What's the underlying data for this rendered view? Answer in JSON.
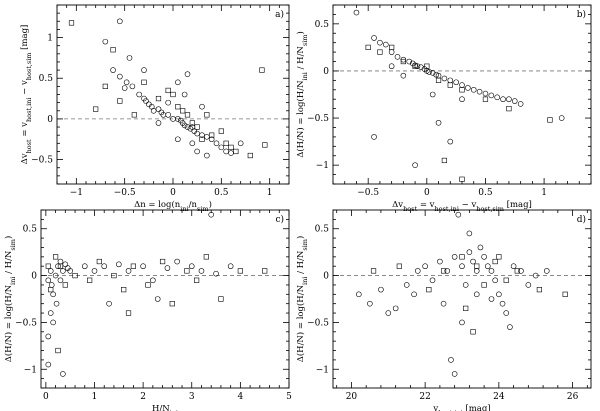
{
  "chart_data": [
    {
      "type": "scatter",
      "panel": "a)",
      "xlabel": "Δn = log(n_ini/n_sim)",
      "ylabel": "Δv_host = v_host,ini − v_host,sim [mag]",
      "xlim": [
        -1.2,
        1.2
      ],
      "ylim": [
        -0.8,
        1.4
      ],
      "xticks": [
        -1,
        -0.5,
        0,
        0.5,
        1
      ],
      "xtick_labels": [
        "−1",
        "−0.5",
        "0",
        "0.5",
        "1"
      ],
      "yticks": [
        -0.5,
        0,
        0.5,
        1
      ],
      "ytick_labels": [
        "−0.5",
        "0",
        "0.5",
        "1"
      ],
      "reference_line": 0,
      "series": [
        {
          "name": "circles",
          "marker": "circle",
          "points": [
            [
              -0.55,
              1.2
            ],
            [
              -0.7,
              0.95
            ],
            [
              -0.62,
              0.6
            ],
            [
              -0.55,
              0.52
            ],
            [
              -0.48,
              0.45
            ],
            [
              -0.42,
              0.4
            ],
            [
              -0.5,
              0.38
            ],
            [
              -0.35,
              0.3
            ],
            [
              -0.3,
              0.25
            ],
            [
              -0.28,
              0.22
            ],
            [
              -0.25,
              0.18
            ],
            [
              -0.22,
              0.15
            ],
            [
              -0.2,
              0.1
            ],
            [
              -0.15,
              0.12
            ],
            [
              -0.12,
              0.08
            ],
            [
              -0.1,
              0.05
            ],
            [
              -0.05,
              0.05
            ],
            [
              0.0,
              0.0
            ],
            [
              0.05,
              0.0
            ],
            [
              0.08,
              -0.02
            ],
            [
              0.1,
              -0.05
            ],
            [
              0.12,
              -0.08
            ],
            [
              0.15,
              -0.1
            ],
            [
              0.18,
              -0.12
            ],
            [
              0.2,
              -0.1
            ],
            [
              0.22,
              -0.15
            ],
            [
              0.25,
              -0.18
            ],
            [
              0.3,
              -0.2
            ],
            [
              0.35,
              -0.22
            ],
            [
              0.4,
              -0.25
            ],
            [
              0.45,
              -0.3
            ],
            [
              0.5,
              -0.35
            ],
            [
              0.55,
              -0.4
            ],
            [
              0.6,
              -0.42
            ],
            [
              0.7,
              -0.3
            ],
            [
              0.05,
              0.45
            ],
            [
              0.12,
              0.3
            ],
            [
              -0.15,
              -0.05
            ],
            [
              0.25,
              -0.4
            ],
            [
              0.35,
              -0.45
            ],
            [
              0.15,
              0.55
            ],
            [
              -0.3,
              0.6
            ],
            [
              -0.45,
              0.75
            ],
            [
              0.3,
              0.15
            ],
            [
              -0.05,
              0.2
            ],
            [
              0.05,
              -0.25
            ],
            [
              0.2,
              -0.3
            ]
          ]
        },
        {
          "name": "squares",
          "marker": "square",
          "points": [
            [
              -1.05,
              1.18
            ],
            [
              -0.62,
              0.85
            ],
            [
              -0.8,
              0.12
            ],
            [
              -0.55,
              0.22
            ],
            [
              -0.4,
              0.05
            ],
            [
              -0.15,
              0.25
            ],
            [
              -0.05,
              0.35
            ],
            [
              0.05,
              0.15
            ],
            [
              0.1,
              0.1
            ],
            [
              0.15,
              0.05
            ],
            [
              0.2,
              -0.05
            ],
            [
              0.25,
              -0.1
            ],
            [
              0.3,
              -0.25
            ],
            [
              0.4,
              -0.2
            ],
            [
              0.5,
              -0.15
            ],
            [
              0.55,
              -0.3
            ],
            [
              0.6,
              -0.35
            ],
            [
              0.65,
              -0.4
            ],
            [
              0.8,
              -0.45
            ],
            [
              0.95,
              -0.32
            ],
            [
              0.92,
              0.6
            ],
            [
              -0.7,
              0.4
            ],
            [
              -0.3,
              0.45
            ],
            [
              0.0,
              0.3
            ],
            [
              0.35,
              0.05
            ]
          ]
        }
      ]
    },
    {
      "type": "scatter",
      "panel": "b)",
      "xlabel": "Δv_host = v_host,ini − v_host,sim [mag]",
      "ylabel": "Δ(H/N) = log(H/N_ini / H/N_sim)",
      "xlim": [
        -0.8,
        1.4
      ],
      "ylim": [
        -1.2,
        0.7
      ],
      "xticks": [
        -0.5,
        0,
        0.5,
        1
      ],
      "xtick_labels": [
        "−0.5",
        "0",
        "0.5",
        "1"
      ],
      "yticks": [
        -1,
        -0.5,
        0,
        0.5
      ],
      "ytick_labels": [
        "−1",
        "−0.5",
        "0",
        "0.5"
      ],
      "reference_line": 0,
      "series": [
        {
          "name": "circles",
          "marker": "circle",
          "points": [
            [
              -0.6,
              0.62
            ],
            [
              -0.45,
              0.35
            ],
            [
              -0.4,
              0.3
            ],
            [
              -0.35,
              0.28
            ],
            [
              -0.3,
              0.2
            ],
            [
              -0.25,
              0.15
            ],
            [
              -0.2,
              0.12
            ],
            [
              -0.15,
              0.1
            ],
            [
              -0.12,
              0.08
            ],
            [
              -0.1,
              0.06
            ],
            [
              -0.08,
              0.05
            ],
            [
              -0.05,
              0.04
            ],
            [
              -0.02,
              0.02
            ],
            [
              0.0,
              0.0
            ],
            [
              0.02,
              -0.01
            ],
            [
              0.05,
              -0.02
            ],
            [
              0.08,
              -0.04
            ],
            [
              0.1,
              -0.05
            ],
            [
              0.15,
              -0.08
            ],
            [
              0.2,
              -0.1
            ],
            [
              0.25,
              -0.12
            ],
            [
              0.3,
              -0.15
            ],
            [
              0.35,
              -0.18
            ],
            [
              0.4,
              -0.2
            ],
            [
              0.45,
              -0.22
            ],
            [
              0.5,
              -0.24
            ],
            [
              0.55,
              -0.26
            ],
            [
              0.6,
              -0.28
            ],
            [
              0.65,
              -0.3
            ],
            [
              0.7,
              -0.3
            ],
            [
              0.75,
              -0.32
            ],
            [
              0.8,
              -0.35
            ],
            [
              1.15,
              -0.5
            ],
            [
              -0.45,
              -0.7
            ],
            [
              -0.1,
              -1.0
            ],
            [
              0.1,
              -0.55
            ],
            [
              0.2,
              -0.75
            ],
            [
              0.3,
              -0.3
            ],
            [
              -0.3,
              0.05
            ],
            [
              -0.2,
              -0.05
            ],
            [
              0.05,
              -0.25
            ]
          ]
        },
        {
          "name": "squares",
          "marker": "square",
          "points": [
            [
              -0.5,
              0.25
            ],
            [
              -0.4,
              0.2
            ],
            [
              -0.3,
              0.25
            ],
            [
              -0.2,
              0.1
            ],
            [
              -0.1,
              0.05
            ],
            [
              0.0,
              0.05
            ],
            [
              0.1,
              -0.1
            ],
            [
              0.2,
              -0.15
            ],
            [
              0.3,
              -0.2
            ],
            [
              0.5,
              -0.3
            ],
            [
              0.7,
              -0.4
            ],
            [
              1.05,
              -0.52
            ],
            [
              0.3,
              -1.15
            ],
            [
              0.15,
              -0.95
            ]
          ]
        }
      ]
    },
    {
      "type": "scatter",
      "panel": "c)",
      "xlabel": "H/N_ini",
      "ylabel": "Δ(H/N) = log(H/N_ini / H/N_sim)",
      "xlim": [
        -0.1,
        5
      ],
      "ylim": [
        -1.2,
        0.7
      ],
      "xticks": [
        0,
        1,
        2,
        3,
        4,
        5
      ],
      "xtick_labels": [
        "0",
        "1",
        "2",
        "3",
        "4",
        "5"
      ],
      "yticks": [
        -1,
        -0.5,
        0,
        0.5
      ],
      "ytick_labels": [
        "−1",
        "−0.5",
        "0",
        "0.5"
      ],
      "reference_line": 0,
      "series": [
        {
          "name": "circles",
          "marker": "circle",
          "points": [
            [
              0.05,
              -0.05
            ],
            [
              0.1,
              0.05
            ],
            [
              0.12,
              -0.1
            ],
            [
              0.15,
              -0.2
            ],
            [
              0.2,
              0.0
            ],
            [
              0.22,
              -0.3
            ],
            [
              0.25,
              0.1
            ],
            [
              0.3,
              -0.05
            ],
            [
              0.35,
              0.05
            ],
            [
              0.4,
              0.12
            ],
            [
              0.45,
              0.08
            ],
            [
              0.1,
              -0.4
            ],
            [
              0.15,
              -0.5
            ],
            [
              0.05,
              -0.65
            ],
            [
              0.3,
              0.15
            ],
            [
              0.5,
              0.05
            ],
            [
              0.8,
              0.1
            ],
            [
              1.0,
              0.05
            ],
            [
              1.2,
              0.1
            ],
            [
              1.5,
              0.12
            ],
            [
              1.7,
              0.05
            ],
            [
              2.0,
              0.1
            ],
            [
              2.2,
              -0.05
            ],
            [
              2.5,
              0.08
            ],
            [
              2.7,
              0.15
            ],
            [
              3.0,
              0.1
            ],
            [
              3.2,
              0.05
            ],
            [
              3.4,
              0.65
            ],
            [
              3.5,
              0.02
            ],
            [
              3.8,
              0.1
            ],
            [
              1.3,
              -0.3
            ],
            [
              2.3,
              -0.25
            ],
            [
              0.35,
              -1.05
            ],
            [
              0.05,
              -0.95
            ]
          ]
        },
        {
          "name": "squares",
          "marker": "square",
          "points": [
            [
              0.05,
              0.1
            ],
            [
              0.1,
              -0.15
            ],
            [
              0.2,
              0.2
            ],
            [
              0.3,
              0.1
            ],
            [
              0.4,
              -0.1
            ],
            [
              0.6,
              0.0
            ],
            [
              0.9,
              -0.05
            ],
            [
              1.1,
              0.15
            ],
            [
              1.4,
              0.0
            ],
            [
              1.6,
              -0.15
            ],
            [
              1.8,
              0.1
            ],
            [
              2.1,
              -0.1
            ],
            [
              2.4,
              0.15
            ],
            [
              2.6,
              -0.3
            ],
            [
              2.9,
              0.05
            ],
            [
              3.1,
              -0.05
            ],
            [
              3.3,
              0.2
            ],
            [
              3.6,
              -0.25
            ],
            [
              4.0,
              0.05
            ],
            [
              4.5,
              0.05
            ],
            [
              0.25,
              -0.8
            ],
            [
              1.7,
              -0.4
            ]
          ]
        }
      ]
    },
    {
      "type": "scatter",
      "panel": "d)",
      "xlabel": "v_host,ini [mag]",
      "ylabel": "Δ(H/N) = log(H/N_ini / H/N_sim)",
      "xlim": [
        19.5,
        26.5
      ],
      "ylim": [
        -1.2,
        0.7
      ],
      "xticks": [
        20,
        22,
        24,
        26
      ],
      "xtick_labels": [
        "20",
        "22",
        "24",
        "26"
      ],
      "yticks": [
        -1,
        -0.5,
        0,
        0.5
      ],
      "ytick_labels": [
        "−1",
        "−0.5",
        "0",
        "0.5"
      ],
      "reference_line": 0,
      "series": [
        {
          "name": "circles",
          "marker": "circle",
          "points": [
            [
              20.2,
              -0.2
            ],
            [
              20.5,
              -0.3
            ],
            [
              20.8,
              -0.15
            ],
            [
              21.0,
              -0.4
            ],
            [
              21.2,
              -0.35
            ],
            [
              21.5,
              -0.1
            ],
            [
              21.8,
              0.05
            ],
            [
              22.0,
              0.1
            ],
            [
              22.2,
              -0.05
            ],
            [
              22.4,
              0.15
            ],
            [
              22.6,
              0.05
            ],
            [
              22.8,
              0.2
            ],
            [
              23.0,
              0.1
            ],
            [
              23.1,
              -0.1
            ],
            [
              23.2,
              0.25
            ],
            [
              23.3,
              0.15
            ],
            [
              23.4,
              0.05
            ],
            [
              23.5,
              0.3
            ],
            [
              23.6,
              0.2
            ],
            [
              23.7,
              0.1
            ],
            [
              23.8,
              0.05
            ],
            [
              23.9,
              -0.05
            ],
            [
              24.0,
              -0.2
            ],
            [
              24.1,
              -0.3
            ],
            [
              24.2,
              -0.4
            ],
            [
              24.4,
              0.1
            ],
            [
              24.6,
              0.05
            ],
            [
              24.8,
              -0.1
            ],
            [
              25.0,
              0.0
            ],
            [
              25.3,
              0.05
            ],
            [
              22.9,
              0.65
            ],
            [
              23.2,
              0.45
            ],
            [
              23.0,
              -0.5
            ],
            [
              22.5,
              -0.3
            ],
            [
              24.3,
              -0.55
            ],
            [
              21.7,
              -0.2
            ],
            [
              22.7,
              -0.9
            ],
            [
              22.8,
              -1.05
            ],
            [
              23.4,
              -0.2
            ],
            [
              23.8,
              -0.25
            ]
          ]
        },
        {
          "name": "squares",
          "marker": "square",
          "points": [
            [
              20.6,
              0.05
            ],
            [
              21.3,
              0.1
            ],
            [
              22.1,
              -0.15
            ],
            [
              22.5,
              0.05
            ],
            [
              23.0,
              0.2
            ],
            [
              23.4,
              0.1
            ],
            [
              23.6,
              -0.1
            ],
            [
              23.9,
              0.15
            ],
            [
              24.2,
              -0.05
            ],
            [
              24.5,
              0.05
            ],
            [
              25.1,
              -0.15
            ],
            [
              25.8,
              -0.2
            ],
            [
              23.3,
              -0.6
            ],
            [
              23.1,
              -0.35
            ],
            [
              24.0,
              0.2
            ]
          ]
        }
      ]
    }
  ]
}
